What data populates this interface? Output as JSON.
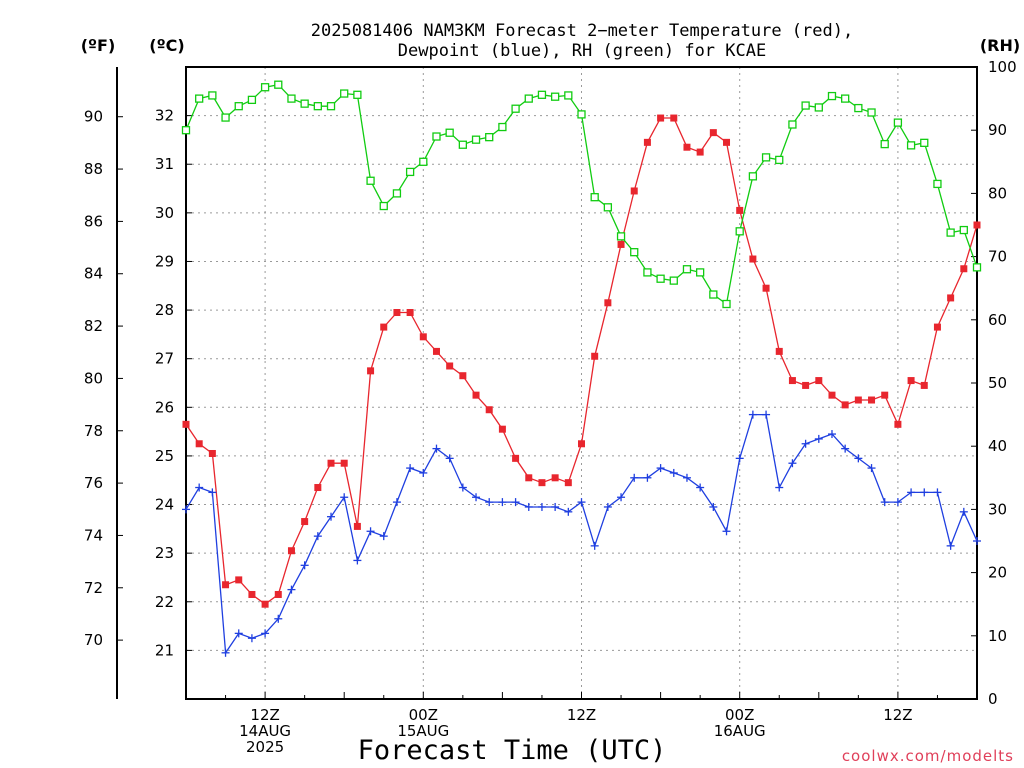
{
  "chart_data": {
    "type": "line",
    "title_line1": "2025081406 NAM3KM Forecast 2−meter Temperature (red),",
    "title_line2": "Dewpoint (blue), RH (green) for KCAE",
    "xlabel": "Forecast Time (UTC)",
    "credit": "coolwx.com/modelts",
    "axes": {
      "left_f": {
        "unit": "(ºF)",
        "range": [
          67.75,
          91.9
        ],
        "ticks": [
          70,
          72,
          74,
          76,
          78,
          80,
          82,
          84,
          86,
          88,
          90
        ]
      },
      "left_c": {
        "unit": "(ºC)",
        "range": [
          20.0,
          33.0
        ],
        "ticks": [
          21,
          22,
          23,
          24,
          25,
          26,
          27,
          28,
          29,
          30,
          31,
          32
        ]
      },
      "right_rh": {
        "unit": "(RH)",
        "range": [
          0,
          100
        ],
        "ticks": [
          0,
          10,
          20,
          30,
          40,
          50,
          60,
          70,
          80,
          90,
          100
        ]
      },
      "x": {
        "unit": "forecast hour",
        "range": [
          0,
          60
        ]
      }
    },
    "x_ticks": [
      {
        "hour": 6,
        "lines": [
          "12Z",
          "14AUG",
          "2025"
        ]
      },
      {
        "hour": 18,
        "lines": [
          "00Z",
          "15AUG"
        ]
      },
      {
        "hour": 30,
        "lines": [
          "12Z"
        ]
      },
      {
        "hour": 42,
        "lines": [
          "00Z",
          "16AUG"
        ]
      },
      {
        "hour": 54,
        "lines": [
          "12Z"
        ]
      }
    ],
    "grid": true,
    "series": [
      {
        "name": "Temperature",
        "axis": "celsius",
        "color": "#e8262e",
        "marker": "filled-square",
        "x": [
          0,
          1,
          2,
          3,
          4,
          5,
          6,
          7,
          8,
          9,
          10,
          11,
          12,
          13,
          14,
          15,
          16,
          17,
          18,
          19,
          20,
          21,
          22,
          23,
          24,
          25,
          26,
          27,
          28,
          29,
          30,
          31,
          32,
          33,
          34,
          35,
          36,
          37,
          38,
          39,
          40,
          41,
          42,
          43,
          44,
          45,
          46,
          47,
          48,
          49,
          50,
          51,
          52,
          53,
          54,
          55,
          56,
          57,
          58,
          59,
          60
        ],
        "y": [
          25.65,
          25.25,
          25.05,
          22.35,
          22.45,
          22.15,
          21.95,
          22.15,
          23.05,
          23.65,
          24.35,
          24.85,
          24.85,
          23.55,
          26.75,
          27.65,
          27.95,
          27.95,
          27.45,
          27.15,
          26.85,
          26.65,
          26.25,
          25.95,
          25.55,
          24.95,
          24.55,
          24.45,
          24.55,
          24.45,
          25.25,
          27.05,
          28.15,
          29.35,
          30.45,
          31.45,
          31.95,
          31.95,
          31.35,
          31.25,
          31.65,
          31.45,
          30.05,
          29.05,
          28.45,
          27.15,
          26.55,
          26.45,
          26.55,
          26.25,
          26.05,
          26.15,
          26.15,
          26.25,
          25.65,
          26.55,
          26.45,
          27.65,
          28.25,
          28.85,
          29.75
        ]
      },
      {
        "name": "Dewpoint",
        "axis": "celsius",
        "color": "#1f3fe0",
        "marker": "plus",
        "x": [
          0,
          1,
          2,
          3,
          4,
          5,
          6,
          7,
          8,
          9,
          10,
          11,
          12,
          13,
          14,
          15,
          16,
          17,
          18,
          19,
          20,
          21,
          22,
          23,
          24,
          25,
          26,
          27,
          28,
          29,
          30,
          31,
          32,
          33,
          34,
          35,
          36,
          37,
          38,
          39,
          40,
          41,
          42,
          43,
          44,
          45,
          46,
          47,
          48,
          49,
          50,
          51,
          52,
          53,
          54,
          55,
          56,
          57,
          58,
          59,
          60
        ],
        "y": [
          23.9,
          24.35,
          24.25,
          20.95,
          21.35,
          21.25,
          21.35,
          21.65,
          22.25,
          22.75,
          23.35,
          23.75,
          24.15,
          22.85,
          23.45,
          23.35,
          24.05,
          24.75,
          24.65,
          25.15,
          24.95,
          24.35,
          24.15,
          24.05,
          24.05,
          24.05,
          23.95,
          23.95,
          23.95,
          23.85,
          24.05,
          23.15,
          23.95,
          24.15,
          24.55,
          24.55,
          24.75,
          24.65,
          24.55,
          24.35,
          23.95,
          23.45,
          24.95,
          25.85,
          25.85,
          24.35,
          24.85,
          25.25,
          25.35,
          25.45,
          25.15,
          24.95,
          24.75,
          24.05,
          24.05,
          24.25,
          24.25,
          24.25,
          23.15,
          23.85,
          23.25
        ]
      },
      {
        "name": "RH",
        "axis": "rh",
        "color": "#11cc11",
        "marker": "open-square",
        "x": [
          0,
          1,
          2,
          3,
          4,
          5,
          6,
          7,
          8,
          9,
          10,
          11,
          12,
          13,
          14,
          15,
          16,
          17,
          18,
          19,
          20,
          21,
          22,
          23,
          24,
          25,
          26,
          27,
          28,
          29,
          30,
          31,
          32,
          33,
          34,
          35,
          36,
          37,
          38,
          39,
          40,
          41,
          42,
          43,
          44,
          45,
          46,
          47,
          48,
          49,
          50,
          51,
          52,
          53,
          54,
          55,
          56,
          57,
          58,
          59,
          60
        ],
        "y": [
          90,
          95,
          95.5,
          92,
          93.8,
          94.8,
          96.8,
          97.2,
          95,
          94.2,
          93.8,
          93.8,
          95.8,
          95.6,
          82,
          78,
          80,
          83.4,
          85,
          89,
          89.6,
          87.7,
          88.5,
          88.9,
          90.5,
          93.4,
          95,
          95.6,
          95.3,
          95.5,
          92.5,
          79.4,
          77.8,
          73.2,
          70.7,
          67.5,
          66.5,
          66.2,
          68,
          67.5,
          64,
          62.5,
          74,
          82.7,
          85.7,
          85.3,
          90.9,
          93.9,
          93.6,
          95.4,
          95,
          93.5,
          92.8,
          87.8,
          91.2,
          87.6,
          88,
          81.5,
          73.8,
          74.2,
          68.3
        ]
      }
    ]
  }
}
